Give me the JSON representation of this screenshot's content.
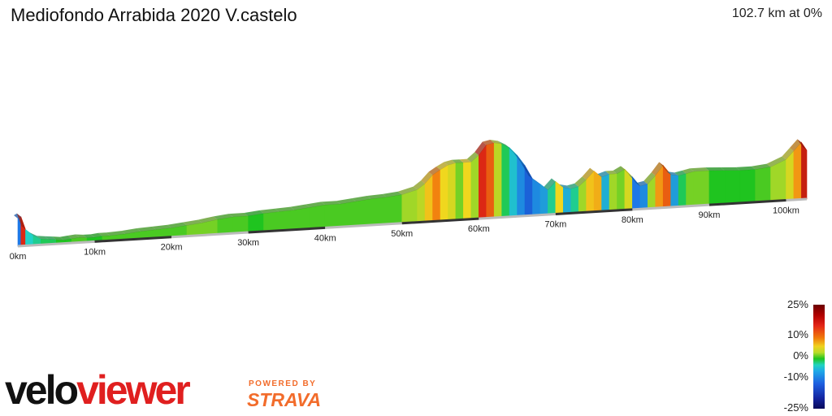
{
  "header": {
    "title": "Mediofondo Arrabida 2020 V.castelo",
    "summary": "102.7 km at 0%"
  },
  "legend": {
    "ticks": [
      "25%",
      "10%",
      "0%",
      "-10%",
      "-25%"
    ],
    "tick_values": [
      25,
      10,
      0,
      -10,
      -25
    ]
  },
  "branding": {
    "velo": "velo",
    "viewer": "viewer",
    "powered_by": "POWERED BY",
    "strava": "STRAVA"
  },
  "colors": {
    "brand_red": "#e01f1f",
    "strava_orange": "#f26c2b"
  },
  "chart_data": {
    "type": "area",
    "title": "Mediofondo Arrabida 2020 V.castelo",
    "xlabel": "",
    "ylabel": "",
    "x_unit": "km",
    "xlim": [
      0,
      102.7
    ],
    "x_ticks": [
      "0km",
      "10km",
      "20km",
      "30km",
      "40km",
      "50km",
      "60km",
      "70km",
      "80km",
      "90km",
      "100km"
    ],
    "x_tick_values": [
      0,
      10,
      20,
      30,
      40,
      50,
      60,
      70,
      80,
      90,
      100
    ],
    "grid": false,
    "legend": "gradient color scale, bottom-right",
    "elevation_profile": {
      "x": [
        0,
        0.4,
        1,
        2,
        3,
        4,
        5,
        6,
        7,
        8,
        9,
        10,
        11,
        12,
        14,
        16,
        18,
        20,
        22,
        24,
        26,
        28,
        30,
        32,
        34,
        36,
        38,
        40,
        42,
        44,
        46,
        48,
        50,
        52,
        53,
        54,
        55,
        56,
        57,
        58,
        59,
        60,
        61,
        62,
        63,
        64,
        65,
        66,
        67,
        68,
        69,
        70,
        71,
        72,
        73,
        74,
        75,
        76,
        77,
        78,
        79,
        80,
        81,
        82,
        83,
        84,
        85,
        86,
        87,
        88,
        90,
        92,
        94,
        96,
        98,
        100,
        101,
        102,
        102.7
      ],
      "relative_elevation": [
        34,
        36,
        20,
        12,
        7,
        6,
        5,
        4,
        5,
        6,
        5,
        5,
        6,
        6,
        7,
        9,
        10,
        11,
        13,
        15,
        18,
        20,
        20,
        22,
        23,
        24,
        26,
        28,
        28,
        30,
        32,
        33,
        35,
        40,
        47,
        57,
        63,
        68,
        70,
        70,
        70,
        78,
        90,
        92,
        90,
        85,
        75,
        62,
        45,
        38,
        30,
        40,
        32,
        30,
        32,
        40,
        50,
        42,
        45,
        45,
        50,
        40,
        28,
        30,
        40,
        52,
        40,
        38,
        40,
        42,
        42,
        41,
        40,
        40,
        42,
        50,
        60,
        70,
        60
      ],
      "grade_percent": [
        -8,
        15,
        -3,
        -2,
        -1,
        -1,
        0,
        0,
        1,
        1,
        0,
        0,
        1,
        1,
        1,
        1,
        1,
        1,
        2,
        2,
        1,
        1,
        0,
        1,
        1,
        1,
        1,
        1,
        1,
        1,
        1,
        1,
        3,
        4,
        7,
        10,
        6,
        5,
        2,
        6,
        3,
        15,
        12,
        4,
        -1,
        -4,
        -7,
        -10,
        -7,
        -6,
        -2,
        6,
        -5,
        -2,
        3,
        7,
        8,
        -5,
        3,
        2,
        5,
        -8,
        -7,
        3,
        9,
        12,
        -6,
        -1,
        2,
        2,
        0,
        0,
        0,
        1,
        3,
        5,
        9,
        17,
        -6
      ]
    }
  }
}
